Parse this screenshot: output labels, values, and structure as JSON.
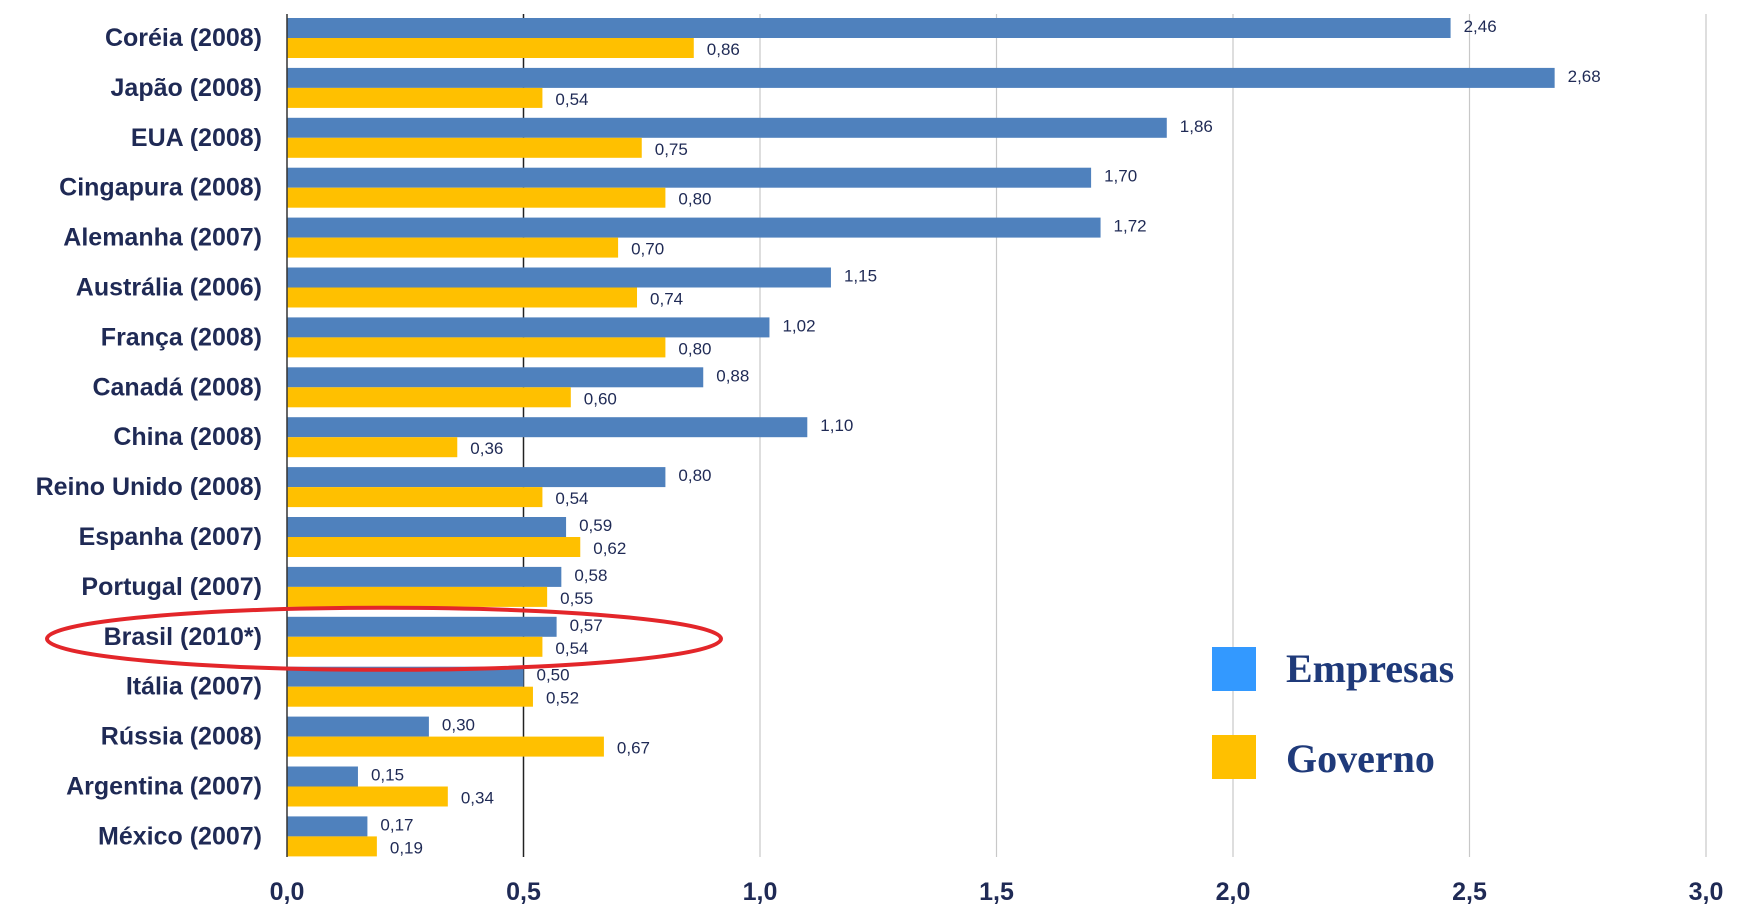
{
  "colors": {
    "empresas": "#4f81bd",
    "governo": "#ffc000",
    "highlight": "#e3262a",
    "label": "#1f2a55",
    "legend_empresas": "#3399ff",
    "legend_governo": "#ffc000"
  },
  "chart_data": {
    "type": "bar",
    "orientation": "horizontal",
    "categories": [
      "Coréia (2008)",
      "Japão (2008)",
      "EUA (2008)",
      "Cingapura (2008)",
      "Alemanha (2007)",
      "Austrália (2006)",
      "França (2008)",
      "Canadá (2008)",
      "China (2008)",
      "Reino Unido (2008)",
      "Espanha (2007)",
      "Portugal (2007)",
      "Brasil (2010*)",
      "Itália (2007)",
      "Rússia (2008)",
      "Argentina (2007)",
      "México (2007)"
    ],
    "series": [
      {
        "name": "Empresas",
        "values": [
          2.46,
          2.68,
          1.86,
          1.7,
          1.72,
          1.15,
          1.02,
          0.88,
          1.1,
          0.8,
          0.59,
          0.58,
          0.57,
          0.5,
          0.3,
          0.15,
          0.17
        ],
        "labels": [
          "2,46",
          "2,68",
          "1,86",
          "1,70",
          "1,72",
          "1,15",
          "1,02",
          "0,88",
          "1,10",
          "0,80",
          "0,59",
          "0,58",
          "0,57",
          "0,50",
          "0,30",
          "0,15",
          "0,17"
        ]
      },
      {
        "name": "Governo",
        "values": [
          0.86,
          0.54,
          0.75,
          0.8,
          0.7,
          0.74,
          0.8,
          0.6,
          0.36,
          0.54,
          0.62,
          0.55,
          0.54,
          0.52,
          0.67,
          0.34,
          0.19
        ],
        "labels": [
          "0,86",
          "0,54",
          "0,75",
          "0,80",
          "0,70",
          "0,74",
          "0,80",
          "0,60",
          "0,36",
          "0,54",
          "0,62",
          "0,55",
          "0,54",
          "0,52",
          "0,67",
          "0,34",
          "0,19"
        ]
      }
    ],
    "xlim": [
      0,
      3
    ],
    "xticks": [
      0,
      0.5,
      1,
      1.5,
      2,
      2.5,
      3
    ],
    "xtick_labels": [
      "0,0",
      "0,5",
      "1,0",
      "1,5",
      "2,0",
      "2,5",
      "3,0"
    ],
    "grid": "vertical",
    "legend": {
      "placement": "bottom-right",
      "entries": [
        "Empresas",
        "Governo"
      ]
    },
    "highlighted_category": "Brasil (2010*)"
  }
}
